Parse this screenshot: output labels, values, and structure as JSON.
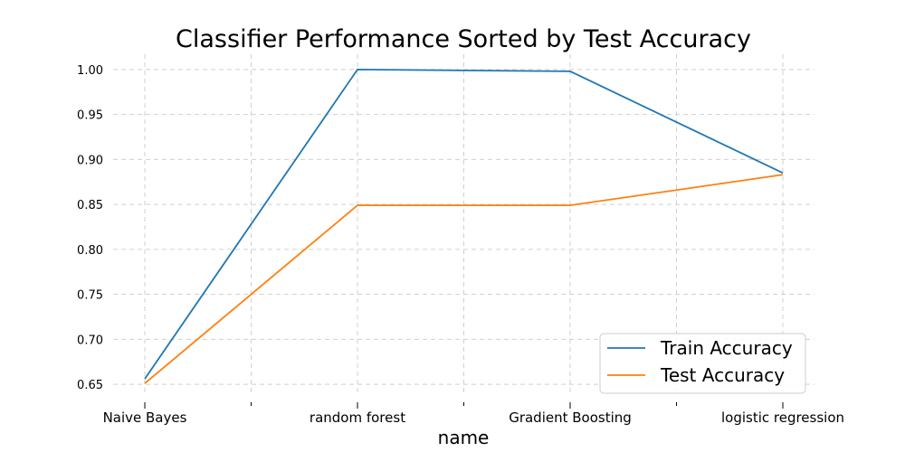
{
  "chart_data": {
    "type": "line",
    "title": "Classifier Performance Sorted by Test Accuracy",
    "xlabel": "name",
    "ylabel": "",
    "categories": [
      "Naive Bayes",
      "random forest",
      "Gradient Boosting",
      "logistic regression"
    ],
    "ylim": [
      0.637,
      1.017
    ],
    "yticks": [
      "0.65",
      "0.70",
      "0.75",
      "0.80",
      "0.85",
      "0.90",
      "0.95",
      "1.00"
    ],
    "grid": true,
    "legend_position": "bottom-right",
    "series": [
      {
        "name": "Train Accuracy",
        "color": "#1f77b4",
        "values": [
          0.656,
          1.0,
          0.998,
          0.885
        ]
      },
      {
        "name": "Test Accuracy",
        "color": "#ff7f0e",
        "values": [
          0.651,
          0.849,
          0.849,
          0.883
        ]
      }
    ]
  }
}
